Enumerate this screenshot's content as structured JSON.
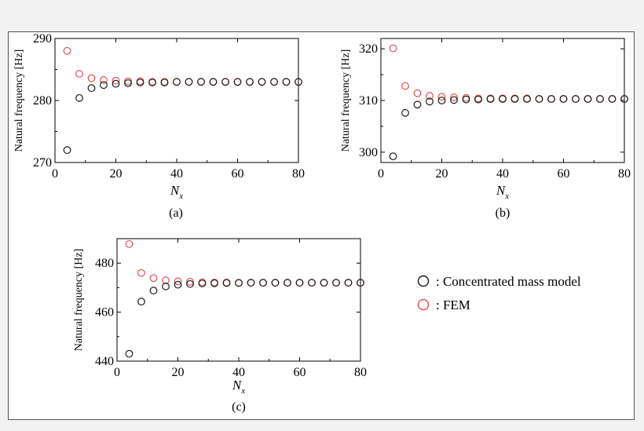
{
  "legend": [
    {
      "label": ": Concentrated mass model",
      "color": "#1a1a1a"
    },
    {
      "label": ": FEM",
      "color": "#e05050"
    }
  ],
  "chart_data": [
    {
      "type": "scatter",
      "caption": "(a)",
      "ylabel": "Natural frequency [Hz]",
      "xlabel": "N",
      "xlabel_sub": "x",
      "xlim": [
        0,
        80
      ],
      "ylim": [
        270,
        290
      ],
      "xticks": [
        0,
        20,
        40,
        60,
        80
      ],
      "yticks": [
        270,
        280,
        290
      ],
      "x": [
        4,
        8,
        12,
        16,
        20,
        24,
        28,
        32,
        36,
        40,
        44,
        48,
        52,
        56,
        60,
        64,
        68,
        72,
        76,
        80
      ],
      "series": [
        {
          "name": "Concentrated mass model",
          "values": [
            272.0,
            280.4,
            282.0,
            282.5,
            282.7,
            282.8,
            282.9,
            282.9,
            282.9,
            283.0,
            283.0,
            283.0,
            283.0,
            283.0,
            283.0,
            283.0,
            283.0,
            283.0,
            283.0,
            283.0
          ]
        },
        {
          "name": "FEM",
          "values": [
            288.0,
            284.3,
            283.6,
            283.3,
            283.2,
            283.1,
            283.1,
            283.0,
            283.0,
            283.0,
            283.0,
            283.0,
            283.0,
            283.0,
            283.0,
            283.0,
            283.0,
            283.0,
            283.0,
            283.0
          ]
        }
      ]
    },
    {
      "type": "scatter",
      "caption": "(b)",
      "ylabel": "Natural frequency [Hz]",
      "xlabel": "N",
      "xlabel_sub": "x",
      "xlim": [
        0,
        80
      ],
      "ylim": [
        298,
        322
      ],
      "xticks": [
        0,
        20,
        40,
        60,
        80
      ],
      "yticks": [
        300,
        310,
        320
      ],
      "x": [
        4,
        8,
        12,
        16,
        20,
        24,
        28,
        32,
        36,
        40,
        44,
        48,
        52,
        56,
        60,
        64,
        68,
        72,
        76,
        80
      ],
      "series": [
        {
          "name": "Concentrated mass model",
          "values": [
            299.2,
            307.6,
            309.2,
            309.8,
            310.0,
            310.1,
            310.2,
            310.2,
            310.3,
            310.3,
            310.3,
            310.3,
            310.3,
            310.3,
            310.3,
            310.3,
            310.3,
            310.3,
            310.3,
            310.3
          ]
        },
        {
          "name": "FEM",
          "values": [
            320.1,
            312.8,
            311.4,
            310.9,
            310.7,
            310.6,
            310.5,
            310.4,
            310.4,
            310.4,
            310.4,
            310.4,
            310.3,
            310.3,
            310.3,
            310.3,
            310.3,
            310.3,
            310.3,
            310.3
          ]
        }
      ]
    },
    {
      "type": "scatter",
      "caption": "(c)",
      "ylabel": "Natural frequency [Hz]",
      "xlabel": "N",
      "xlabel_sub": "x",
      "xlim": [
        0,
        80
      ],
      "ylim": [
        440,
        490
      ],
      "xticks": [
        0,
        20,
        40,
        60,
        80
      ],
      "yticks": [
        440,
        460,
        480
      ],
      "x": [
        4,
        8,
        12,
        16,
        20,
        24,
        28,
        32,
        36,
        40,
        44,
        48,
        52,
        56,
        60,
        64,
        68,
        72,
        76,
        80
      ],
      "series": [
        {
          "name": "Concentrated mass model",
          "values": [
            443.0,
            464.3,
            468.8,
            470.5,
            471.2,
            471.5,
            471.7,
            471.8,
            471.9,
            471.9,
            472.0,
            472.0,
            472.0,
            472.0,
            472.0,
            472.0,
            472.0,
            472.0,
            472.0,
            472.0
          ]
        },
        {
          "name": "FEM",
          "values": [
            487.8,
            476.0,
            473.9,
            473.0,
            472.6,
            472.4,
            472.2,
            472.1,
            472.1,
            472.0,
            472.0,
            472.0,
            472.0,
            472.0,
            472.0,
            472.0,
            472.0,
            472.0,
            472.0,
            472.0
          ]
        }
      ]
    }
  ]
}
